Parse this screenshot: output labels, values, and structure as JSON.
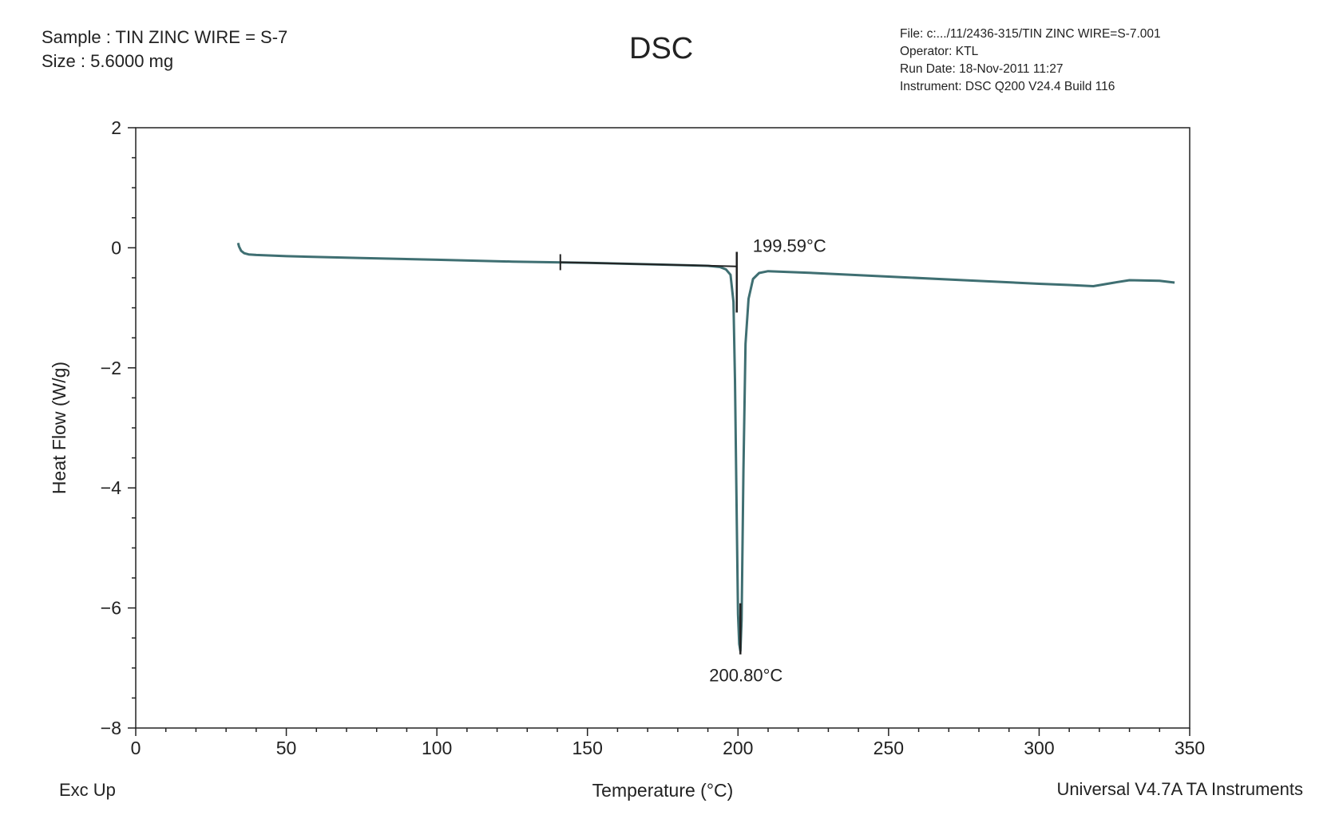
{
  "header": {
    "sample": "Sample : TIN ZINC WIRE = S-7",
    "size": "Size : 5.6000 mg",
    "title": "DSC",
    "file": "File: c:.../11/2436-315/TIN ZINC WIRE=S-7.001",
    "operator": "Operator: KTL",
    "run_date": "Run Date: 18-Nov-2011 11:27",
    "instrument": "Instrument: DSC Q200 V24.4 Build 116"
  },
  "footer": {
    "left": "Exc Up",
    "right": "Universal V4.7A TA Instruments"
  },
  "colors": {
    "curve": "#3f6f72",
    "axis": "#222222",
    "baseline": "#222222"
  },
  "chart_data": {
    "type": "line",
    "title": "DSC",
    "xlabel": "Temperature (°C)",
    "ylabel": "Heat Flow (W/g)",
    "xlim": [
      0,
      350
    ],
    "ylim": [
      -8,
      2
    ],
    "x_ticks": [
      0,
      50,
      100,
      150,
      200,
      250,
      300,
      350
    ],
    "x_tick_labels": [
      "0",
      "50",
      "100",
      "150",
      "200",
      "250",
      "300",
      "350"
    ],
    "y_ticks": [
      2,
      0,
      -2,
      -4,
      -6,
      -8
    ],
    "y_tick_labels": [
      "2",
      "0",
      "−2",
      "−4",
      "−6",
      "−8"
    ],
    "grid": false,
    "series": [
      {
        "x": [
          34.0,
          34.3,
          35.0,
          36.0,
          37.5,
          40,
          50,
          75,
          100,
          125,
          150,
          175,
          190,
          194,
          196,
          197.5,
          198.5,
          199.0,
          199.6,
          200.0,
          200.4,
          200.8,
          201.2,
          201.8,
          202.5,
          203.5,
          205,
          207,
          210,
          225,
          250,
          275,
          300,
          310,
          318,
          325,
          330,
          340,
          345
        ],
        "y": [
          0.08,
          0.02,
          -0.05,
          -0.09,
          -0.11,
          -0.12,
          -0.14,
          -0.17,
          -0.2,
          -0.23,
          -0.25,
          -0.28,
          -0.3,
          -0.32,
          -0.36,
          -0.45,
          -0.9,
          -2.2,
          -4.6,
          -6.1,
          -6.6,
          -6.72,
          -6.2,
          -3.7,
          -1.6,
          -0.85,
          -0.52,
          -0.42,
          -0.39,
          -0.42,
          -0.48,
          -0.54,
          -0.6,
          -0.62,
          -0.64,
          -0.58,
          -0.54,
          -0.55,
          -0.58
        ]
      }
    ],
    "annotations": [
      {
        "text": "199.59°C",
        "x": 199.59,
        "y": -0.28,
        "kind": "onset"
      },
      {
        "text": "200.80°C",
        "x": 200.8,
        "y": -6.72,
        "kind": "peak"
      }
    ],
    "baseline": {
      "x_start": 141,
      "x_end": 199.6,
      "y_start": -0.24,
      "y_end": -0.31
    }
  }
}
